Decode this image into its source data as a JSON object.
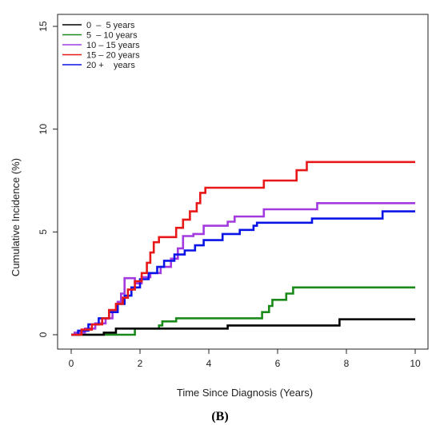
{
  "panel_label": "(B)",
  "chart_data": {
    "type": "line",
    "step": true,
    "xlabel": "Time Since Diagnosis (Years)",
    "ylabel": "Cumulative Incidence (%)",
    "xlim": [
      0,
      10
    ],
    "ylim": [
      0,
      15
    ],
    "xticks": [
      0,
      2,
      4,
      6,
      8,
      10
    ],
    "yticks": [
      0,
      5,
      10,
      15
    ],
    "legend_position": "top-left",
    "grid": false,
    "series": [
      {
        "name": "0  –  5 years",
        "color": "#000000",
        "points": [
          [
            0,
            0
          ],
          [
            0.95,
            0
          ],
          [
            0.95,
            0.1
          ],
          [
            1.3,
            0.1
          ],
          [
            1.3,
            0.3
          ],
          [
            4.55,
            0.3
          ],
          [
            4.55,
            0.45
          ],
          [
            7.8,
            0.45
          ],
          [
            7.8,
            0.75
          ],
          [
            10,
            0.75
          ]
        ]
      },
      {
        "name": "5  – 10 years",
        "color": "#1a8a1a",
        "points": [
          [
            0,
            0
          ],
          [
            1.85,
            0
          ],
          [
            1.85,
            0.3
          ],
          [
            2.55,
            0.3
          ],
          [
            2.55,
            0.45
          ],
          [
            2.65,
            0.45
          ],
          [
            2.65,
            0.65
          ],
          [
            3.05,
            0.65
          ],
          [
            3.05,
            0.8
          ],
          [
            5.55,
            0.8
          ],
          [
            5.55,
            1.1
          ],
          [
            5.75,
            1.1
          ],
          [
            5.75,
            1.4
          ],
          [
            5.85,
            1.4
          ],
          [
            5.85,
            1.7
          ],
          [
            6.25,
            1.7
          ],
          [
            6.25,
            2.0
          ],
          [
            6.45,
            2.0
          ],
          [
            6.45,
            2.3
          ],
          [
            10,
            2.3
          ]
        ]
      },
      {
        "name": "10 – 15 years",
        "color": "#a23ae0",
        "points": [
          [
            0,
            0
          ],
          [
            0.1,
            0
          ],
          [
            0.1,
            0.1
          ],
          [
            0.4,
            0.1
          ],
          [
            0.4,
            0.3
          ],
          [
            0.7,
            0.3
          ],
          [
            0.7,
            0.55
          ],
          [
            1.0,
            0.55
          ],
          [
            1.0,
            0.8
          ],
          [
            1.2,
            0.8
          ],
          [
            1.2,
            1.1
          ],
          [
            1.35,
            1.1
          ],
          [
            1.35,
            1.6
          ],
          [
            1.45,
            1.6
          ],
          [
            1.45,
            2.0
          ],
          [
            1.55,
            2.0
          ],
          [
            1.55,
            2.75
          ],
          [
            1.85,
            2.75
          ],
          [
            1.85,
            2.5
          ],
          [
            2.05,
            2.5
          ],
          [
            2.05,
            2.8
          ],
          [
            2.3,
            2.8
          ],
          [
            2.3,
            3.0
          ],
          [
            2.6,
            3.0
          ],
          [
            2.6,
            3.3
          ],
          [
            2.9,
            3.3
          ],
          [
            2.9,
            3.7
          ],
          [
            3.1,
            3.7
          ],
          [
            3.1,
            4.2
          ],
          [
            3.25,
            4.2
          ],
          [
            3.25,
            4.8
          ],
          [
            3.55,
            4.8
          ],
          [
            3.55,
            4.9
          ],
          [
            3.85,
            4.9
          ],
          [
            3.85,
            5.3
          ],
          [
            4.55,
            5.3
          ],
          [
            4.55,
            5.5
          ],
          [
            4.75,
            5.5
          ],
          [
            4.75,
            5.75
          ],
          [
            5.6,
            5.75
          ],
          [
            5.6,
            6.1
          ],
          [
            7.15,
            6.1
          ],
          [
            7.15,
            6.4
          ],
          [
            10,
            6.4
          ]
        ]
      },
      {
        "name": "15 – 20 years",
        "color": "#e81818",
        "points": [
          [
            0,
            0
          ],
          [
            0.3,
            0
          ],
          [
            0.3,
            0.25
          ],
          [
            0.6,
            0.25
          ],
          [
            0.6,
            0.5
          ],
          [
            0.9,
            0.5
          ],
          [
            0.9,
            0.8
          ],
          [
            1.1,
            0.8
          ],
          [
            1.1,
            1.2
          ],
          [
            1.3,
            1.2
          ],
          [
            1.3,
            1.5
          ],
          [
            1.5,
            1.5
          ],
          [
            1.5,
            1.8
          ],
          [
            1.65,
            1.8
          ],
          [
            1.65,
            2.2
          ],
          [
            1.85,
            2.2
          ],
          [
            1.85,
            2.6
          ],
          [
            2.05,
            2.6
          ],
          [
            2.05,
            3.0
          ],
          [
            2.2,
            3.0
          ],
          [
            2.2,
            3.5
          ],
          [
            2.3,
            3.5
          ],
          [
            2.3,
            4.0
          ],
          [
            2.4,
            4.0
          ],
          [
            2.4,
            4.5
          ],
          [
            2.55,
            4.5
          ],
          [
            2.55,
            4.75
          ],
          [
            3.05,
            4.75
          ],
          [
            3.05,
            5.2
          ],
          [
            3.25,
            5.2
          ],
          [
            3.25,
            5.6
          ],
          [
            3.45,
            5.6
          ],
          [
            3.45,
            6.0
          ],
          [
            3.65,
            6.0
          ],
          [
            3.65,
            6.4
          ],
          [
            3.75,
            6.4
          ],
          [
            3.75,
            6.9
          ],
          [
            3.9,
            6.9
          ],
          [
            3.9,
            7.15
          ],
          [
            5.6,
            7.15
          ],
          [
            5.6,
            7.5
          ],
          [
            6.55,
            7.5
          ],
          [
            6.55,
            8.0
          ],
          [
            6.85,
            8.0
          ],
          [
            6.85,
            8.4
          ],
          [
            10,
            8.4
          ]
        ]
      },
      {
        "name": "20 +    years",
        "color": "#0a14e6",
        "points": [
          [
            0,
            0
          ],
          [
            0.2,
            0
          ],
          [
            0.2,
            0.2
          ],
          [
            0.5,
            0.2
          ],
          [
            0.5,
            0.5
          ],
          [
            0.8,
            0.5
          ],
          [
            0.8,
            0.8
          ],
          [
            1.1,
            0.8
          ],
          [
            1.1,
            1.1
          ],
          [
            1.35,
            1.1
          ],
          [
            1.35,
            1.5
          ],
          [
            1.55,
            1.5
          ],
          [
            1.55,
            1.9
          ],
          [
            1.75,
            1.9
          ],
          [
            1.75,
            2.3
          ],
          [
            2.0,
            2.3
          ],
          [
            2.0,
            2.7
          ],
          [
            2.25,
            2.7
          ],
          [
            2.25,
            3.0
          ],
          [
            2.5,
            3.0
          ],
          [
            2.5,
            3.3
          ],
          [
            2.7,
            3.3
          ],
          [
            2.7,
            3.6
          ],
          [
            3.0,
            3.6
          ],
          [
            3.0,
            3.9
          ],
          [
            3.3,
            3.9
          ],
          [
            3.3,
            4.1
          ],
          [
            3.6,
            4.1
          ],
          [
            3.6,
            4.35
          ],
          [
            3.85,
            4.35
          ],
          [
            3.85,
            4.6
          ],
          [
            4.4,
            4.6
          ],
          [
            4.4,
            4.9
          ],
          [
            4.9,
            4.9
          ],
          [
            4.9,
            5.1
          ],
          [
            5.3,
            5.1
          ],
          [
            5.3,
            5.3
          ],
          [
            5.4,
            5.3
          ],
          [
            5.4,
            5.45
          ],
          [
            7.0,
            5.45
          ],
          [
            7.0,
            5.65
          ],
          [
            9.05,
            5.65
          ],
          [
            9.05,
            6.0
          ],
          [
            10,
            6.0
          ]
        ]
      }
    ]
  }
}
